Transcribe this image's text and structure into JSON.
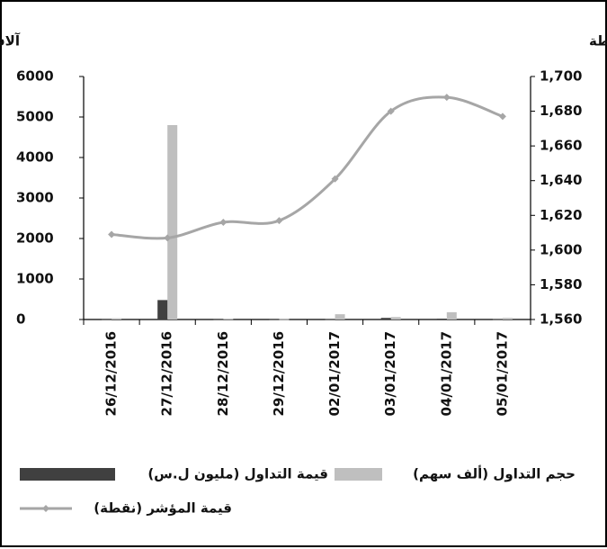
{
  "chart_data": {
    "type": "bar",
    "y_label": "آلاف",
    "y2_label": "نقطة",
    "categories": [
      "26/12/2016",
      "27/12/2016",
      "28/12/2016",
      "29/12/2016",
      "02/01/2017",
      "03/01/2017",
      "04/01/2017",
      "05/01/2017"
    ],
    "series": [
      {
        "name": "حجم التداول (ألف سهم)",
        "type": "bar",
        "color": "#bfbfbf",
        "values": [
          30,
          4800,
          15,
          10,
          130,
          60,
          180,
          40
        ]
      },
      {
        "name": "قيمة التداول (مليون ل.س)",
        "type": "bar",
        "color": "#404040",
        "values": [
          5,
          480,
          5,
          5,
          10,
          40,
          20,
          10
        ]
      },
      {
        "name": "قيمة المؤشر (نقطة)",
        "type": "line",
        "axis": "y2",
        "color": "#a6a6a6",
        "values": [
          1609,
          1607,
          1616,
          1617,
          1641,
          1680,
          1688,
          1677
        ]
      }
    ],
    "ylim": [
      0,
      6000
    ],
    "yticks": [
      0,
      1000,
      2000,
      3000,
      4000,
      5000,
      6000
    ],
    "y2lim": [
      1560,
      1700
    ],
    "y2ticks": [
      {
        "value": 1560,
        "label": "1,560"
      },
      {
        "value": 1580,
        "label": "1,580"
      },
      {
        "value": 1600,
        "label": "1,600"
      },
      {
        "value": 1620,
        "label": "1,620"
      },
      {
        "value": 1640,
        "label": "1,640"
      },
      {
        "value": 1660,
        "label": "1,660"
      },
      {
        "value": 1680,
        "label": "1,680"
      },
      {
        "value": 1700,
        "label": "1,700"
      }
    ],
    "grid": false
  }
}
